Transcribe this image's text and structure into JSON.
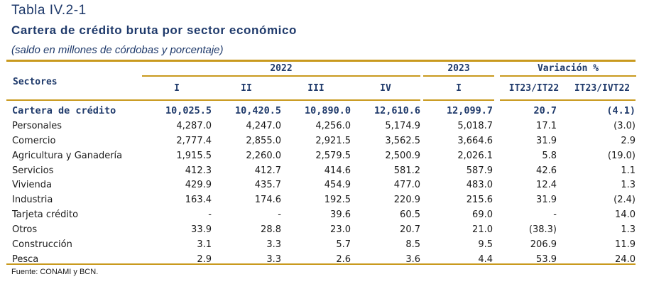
{
  "table_number": "Tabla IV.2-1",
  "title": "Cartera de crédito bruta por sector económico",
  "subtitle": "(saldo en millones de córdobas y porcentaje)",
  "header": {
    "sectors_label": "Sectores",
    "year_2022": "2022",
    "year_2023": "2023",
    "variation": "Variación %",
    "quarters": [
      "I",
      "II",
      "III",
      "IV",
      "I"
    ],
    "variation_cols": [
      "IT23/IT22",
      "IT23/IVT22"
    ]
  },
  "rows": [
    {
      "label": "Cartera de crédito",
      "values": [
        "10,025.5",
        "10,420.5",
        "10,890.0",
        "12,610.6",
        "12,099.7",
        "20.7",
        "(4.1)"
      ]
    },
    {
      "label": "Personales",
      "values": [
        "4,287.0",
        "4,247.0",
        "4,256.0",
        "5,174.9",
        "5,018.7",
        "17.1",
        "(3.0)"
      ]
    },
    {
      "label": "Comercio",
      "values": [
        "2,777.4",
        "2,855.0",
        "2,921.5",
        "3,562.5",
        "3,664.6",
        "31.9",
        "2.9"
      ]
    },
    {
      "label": "Agricultura y Ganadería",
      "values": [
        "1,915.5",
        "2,260.0",
        "2,579.5",
        "2,500.9",
        "2,026.1",
        "5.8",
        "(19.0)"
      ]
    },
    {
      "label": "Servicios",
      "values": [
        "412.3",
        "412.7",
        "414.6",
        "581.2",
        "587.9",
        "42.6",
        "1.1"
      ]
    },
    {
      "label": "Vivienda",
      "values": [
        "429.9",
        "435.7",
        "454.9",
        "477.0",
        "483.0",
        "12.4",
        "1.3"
      ]
    },
    {
      "label": "Industria",
      "values": [
        "163.4",
        "174.6",
        "192.5",
        "220.9",
        "215.6",
        "31.9",
        "(2.4)"
      ]
    },
    {
      "label": "Tarjeta crédito",
      "values": [
        "-",
        "-",
        "39.6",
        "60.5",
        "69.0",
        "-",
        "14.0"
      ]
    },
    {
      "label": "Otros",
      "values": [
        "33.9",
        "28.8",
        "23.0",
        "20.7",
        "21.0",
        "(38.3)",
        "1.3"
      ]
    },
    {
      "label": "Construcción",
      "values": [
        "3.1",
        "3.3",
        "5.7",
        "8.5",
        "9.5",
        "206.9",
        "11.9"
      ]
    },
    {
      "label": "Pesca",
      "values": [
        "2.9",
        "3.3",
        "2.6",
        "3.6",
        "4.4",
        "53.9",
        "24.0"
      ]
    }
  ],
  "source": "Fuente: CONAMI y BCN."
}
